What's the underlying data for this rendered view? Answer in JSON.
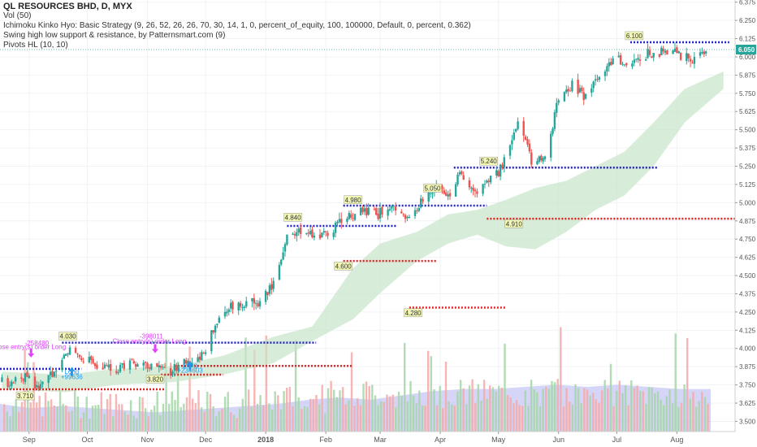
{
  "legend": {
    "title": "QL RESOURCES BHD, D, MYX",
    "vol": "Vol (50)",
    "ichimoku": "Ichimoku Kinko Hyo: Basic Strategy (9, 26, 52, 26, 26, 70, 30, 14, 1, 0, percent_of_equity, 100, 100000, Default, 0, percent, 0.362)",
    "swing": "Swing high low support & resistance, by Patternsmart.com (9)",
    "pivots": "Pivots HL (10, 10)"
  },
  "colors": {
    "up": "#26a69a",
    "down": "#ef5350",
    "resistance": "#2222cc",
    "support": "#dd2222",
    "cloud": "#c8e6c9",
    "vol_up": "#a5d6a7",
    "vol_down": "#f4a9a8",
    "vol_ma": "#b3b3f0",
    "last_price": "#26a69a",
    "strategy": "#e040fb"
  },
  "chart_data": {
    "type": "candlestick",
    "y_axis": {
      "ticks": [
        "6.375",
        "6.250",
        "6.125",
        "6.000",
        "5.875",
        "5.750",
        "5.625",
        "5.500",
        "5.375",
        "5.250",
        "5.125",
        "5.000",
        "4.875",
        "4.750",
        "4.625",
        "4.500",
        "4.375",
        "4.250",
        "4.125",
        "4.000",
        "3.875",
        "3.750",
        "3.625",
        "3.500"
      ],
      "range": [
        3.43,
        6.39
      ],
      "last_price": "6.050"
    },
    "x_axis": {
      "labels": [
        "Sep",
        "Oct",
        "Nov",
        "Dec",
        "2018",
        "Feb",
        "Mar",
        "Apr",
        "May",
        "Jun",
        "Jul",
        "Aug"
      ],
      "label_dates": [
        "2017-09-01",
        "2017-10-01",
        "2017-11-01",
        "2017-12-01",
        "2018-01-01",
        "2018-02-01",
        "2018-03-01",
        "2018-04-01",
        "2018-05-01",
        "2018-06-01",
        "2018-07-01",
        "2018-08-01"
      ],
      "range": [
        "2017-08-17",
        "2018-08-31"
      ]
    },
    "price_path": [
      [
        "2017-08-18",
        3.77
      ],
      [
        "2017-09-01",
        3.8
      ],
      [
        "2017-09-06",
        3.72
      ],
      [
        "2017-09-15",
        3.86
      ],
      [
        "2017-09-22",
        4.0
      ],
      [
        "2017-10-01",
        3.92
      ],
      [
        "2017-10-15",
        3.86
      ],
      [
        "2017-10-25",
        3.9
      ],
      [
        "2017-11-05",
        3.87
      ],
      [
        "2017-11-15",
        3.85
      ],
      [
        "2017-11-22",
        3.93
      ],
      [
        "2017-12-01",
        3.96
      ],
      [
        "2017-12-06",
        4.18
      ],
      [
        "2017-12-15",
        4.29
      ],
      [
        "2017-12-27",
        4.3
      ],
      [
        "2018-01-05",
        4.45
      ],
      [
        "2018-01-12",
        4.78
      ],
      [
        "2018-01-20",
        4.79
      ],
      [
        "2018-01-27",
        4.8
      ],
      [
        "2018-02-01",
        4.78
      ],
      [
        "2018-02-10",
        4.9
      ],
      [
        "2018-02-20",
        4.94
      ],
      [
        "2018-02-28",
        4.93
      ],
      [
        "2018-03-08",
        4.95
      ],
      [
        "2018-03-15",
        4.88
      ],
      [
        "2018-03-22",
        4.99
      ],
      [
        "2018-03-30",
        5.1
      ],
      [
        "2018-04-06",
        5.05
      ],
      [
        "2018-04-12",
        5.22
      ],
      [
        "2018-04-18",
        5.05
      ],
      [
        "2018-04-25",
        5.15
      ],
      [
        "2018-05-01",
        5.2
      ],
      [
        "2018-05-08",
        5.4
      ],
      [
        "2018-05-12",
        5.6
      ],
      [
        "2018-05-18",
        5.28
      ],
      [
        "2018-05-25",
        5.32
      ],
      [
        "2018-06-01",
        5.72
      ],
      [
        "2018-06-08",
        5.8
      ],
      [
        "2018-06-14",
        5.74
      ],
      [
        "2018-06-22",
        5.85
      ],
      [
        "2018-06-30",
        6.0
      ],
      [
        "2018-07-06",
        5.93
      ],
      [
        "2018-07-15",
        6.02
      ],
      [
        "2018-07-25",
        6.04
      ],
      [
        "2018-08-01",
        6.02
      ],
      [
        "2018-08-10",
        5.96
      ],
      [
        "2018-08-16",
        6.05
      ]
    ],
    "cloud_upper": [
      [
        "2017-08-18",
        3.84
      ],
      [
        "2017-09-20",
        3.82
      ],
      [
        "2017-10-15",
        3.86
      ],
      [
        "2017-11-15",
        3.88
      ],
      [
        "2017-12-10",
        3.95
      ],
      [
        "2018-01-05",
        4.08
      ],
      [
        "2018-01-25",
        4.15
      ],
      [
        "2018-02-15",
        4.55
      ],
      [
        "2018-03-01",
        4.72
      ],
      [
        "2018-03-20",
        4.8
      ],
      [
        "2018-04-05",
        4.92
      ],
      [
        "2018-04-20",
        4.95
      ],
      [
        "2018-05-05",
        5.02
      ],
      [
        "2018-05-20",
        5.1
      ],
      [
        "2018-06-05",
        5.15
      ],
      [
        "2018-06-20",
        5.25
      ],
      [
        "2018-07-05",
        5.35
      ],
      [
        "2018-07-20",
        5.55
      ],
      [
        "2018-08-05",
        5.78
      ],
      [
        "2018-08-25",
        5.9
      ]
    ],
    "cloud_lower": [
      [
        "2017-08-18",
        3.72
      ],
      [
        "2017-09-20",
        3.7
      ],
      [
        "2017-10-15",
        3.75
      ],
      [
        "2017-11-15",
        3.77
      ],
      [
        "2017-12-10",
        3.82
      ],
      [
        "2018-01-05",
        3.9
      ],
      [
        "2018-01-25",
        4.05
      ],
      [
        "2018-02-15",
        4.2
      ],
      [
        "2018-03-01",
        4.38
      ],
      [
        "2018-03-20",
        4.6
      ],
      [
        "2018-04-05",
        4.72
      ],
      [
        "2018-04-20",
        4.78
      ],
      [
        "2018-05-05",
        4.7
      ],
      [
        "2018-05-20",
        4.68
      ],
      [
        "2018-06-05",
        4.8
      ],
      [
        "2018-06-20",
        4.95
      ],
      [
        "2018-07-05",
        5.05
      ],
      [
        "2018-07-20",
        5.25
      ],
      [
        "2018-08-05",
        5.55
      ],
      [
        "2018-08-25",
        5.78
      ]
    ],
    "resistance_lines": [
      {
        "y": 3.86,
        "from": "2017-08-17",
        "to": "2017-09-28"
      },
      {
        "y": 4.04,
        "from": "2017-09-18",
        "to": "2018-01-27"
      },
      {
        "y": 4.84,
        "from": "2018-01-12",
        "to": "2018-03-10"
      },
      {
        "y": 4.98,
        "from": "2018-02-10",
        "to": "2018-04-25"
      },
      {
        "y": 5.24,
        "from": "2018-04-08",
        "to": "2018-07-22"
      },
      {
        "y": 6.1,
        "from": "2018-07-08",
        "to": "2018-08-28"
      }
    ],
    "support_lines": [
      {
        "y": 3.72,
        "from": "2017-08-17",
        "to": "2017-11-10"
      },
      {
        "y": 3.88,
        "from": "2017-11-15",
        "to": "2018-02-15"
      },
      {
        "y": 3.82,
        "from": "2017-11-08",
        "to": "2017-12-10"
      },
      {
        "y": 4.6,
        "from": "2018-02-10",
        "to": "2018-03-30"
      },
      {
        "y": 4.28,
        "from": "2018-03-16",
        "to": "2018-05-05"
      },
      {
        "y": 4.89,
        "from": "2018-04-25",
        "to": "2018-08-31"
      }
    ],
    "pivot_labels": [
      {
        "text": "4.030",
        "date": "2017-09-21",
        "y": 4.085
      },
      {
        "text": "3.710",
        "date": "2017-08-30",
        "y": 3.675
      },
      {
        "text": "3.820",
        "date": "2017-11-05",
        "y": 3.79
      },
      {
        "text": "4.840",
        "date": "2018-01-15",
        "y": 4.9
      },
      {
        "text": "4.600",
        "date": "2018-02-10",
        "y": 4.565
      },
      {
        "text": "4.980",
        "date": "2018-02-15",
        "y": 5.02
      },
      {
        "text": "5.050",
        "date": "2018-03-28",
        "y": 5.1
      },
      {
        "text": "4.280",
        "date": "2018-03-18",
        "y": 4.245
      },
      {
        "text": "5.240",
        "date": "2018-04-26",
        "y": 5.285
      },
      {
        "text": "4.910",
        "date": "2018-05-09",
        "y": 4.855
      },
      {
        "text": "6.100",
        "date": "2018-07-10",
        "y": 6.145
      }
    ],
    "strategy_labels": [
      {
        "text": "Close entry(s) order Long",
        "date": "2017-09-01",
        "y": 3.995,
        "color": "#e040fb"
      },
      {
        "text": "-258480",
        "date": "2017-09-05",
        "y": 4.02,
        "color": "#e040fb"
      },
      {
        "text": "Close entry(s) order Long",
        "date": "2017-11-02",
        "y": 4.035,
        "color": "#e040fb"
      },
      {
        "text": "-398011",
        "date": "2017-11-03",
        "y": 4.068,
        "color": "#e040fb"
      },
      {
        "text": "Long",
        "date": "2017-09-23",
        "y": 3.825,
        "color": "#2196f3"
      },
      {
        "text": "+99636",
        "date": "2017-09-23",
        "y": 3.79,
        "color": "#2196f3"
      },
      {
        "text": "Long",
        "date": "2017-11-23",
        "y": 3.87,
        "color": "#2196f3"
      },
      {
        "text": "+234603",
        "date": "2017-11-23",
        "y": 3.835,
        "color": "#2196f3"
      }
    ],
    "arrows": [
      {
        "dir": "down",
        "date": "2017-09-02",
        "y": 3.955,
        "color": "#e040fb"
      },
      {
        "dir": "down",
        "date": "2017-11-05",
        "y": 3.985,
        "color": "#e040fb"
      },
      {
        "dir": "up",
        "date": "2017-09-23",
        "y": 3.855,
        "color": "#2196f3"
      },
      {
        "dir": "up",
        "date": "2017-11-23",
        "y": 3.895,
        "color": "#2196f3"
      }
    ],
    "volume": {
      "description": "Daily volume bars colored by candle direction with a shaded 50-period moving average",
      "scale_max": 1.0,
      "ma_level": [
        0.26,
        0.22,
        0.24,
        0.22,
        0.2,
        0.18,
        0.2,
        0.22,
        0.24,
        0.26,
        0.3,
        0.32,
        0.3,
        0.34,
        0.38,
        0.4,
        0.4,
        0.42,
        0.44,
        0.42,
        0.44,
        0.42,
        0.4,
        0.4
      ]
    }
  }
}
